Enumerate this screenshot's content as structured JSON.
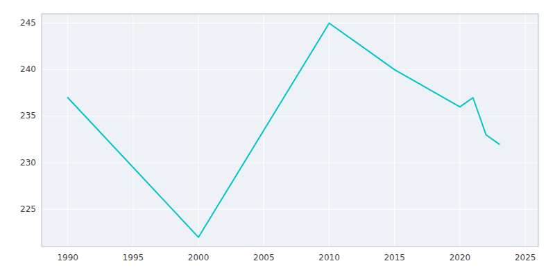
{
  "chart_data": {
    "type": "line",
    "x": [
      1990,
      2000,
      2010,
      2015,
      2020,
      2021,
      2022,
      2023
    ],
    "values": [
      237,
      222,
      245,
      240,
      236,
      237,
      233,
      232
    ],
    "color": "#00C5C8",
    "xlim": [
      1988,
      2026
    ],
    "ylim": [
      221,
      246
    ],
    "xticks": [
      1990,
      1995,
      2000,
      2005,
      2010,
      2015,
      2020,
      2025
    ],
    "yticks": [
      225,
      230,
      235,
      240,
      245
    ],
    "grid": true
  }
}
